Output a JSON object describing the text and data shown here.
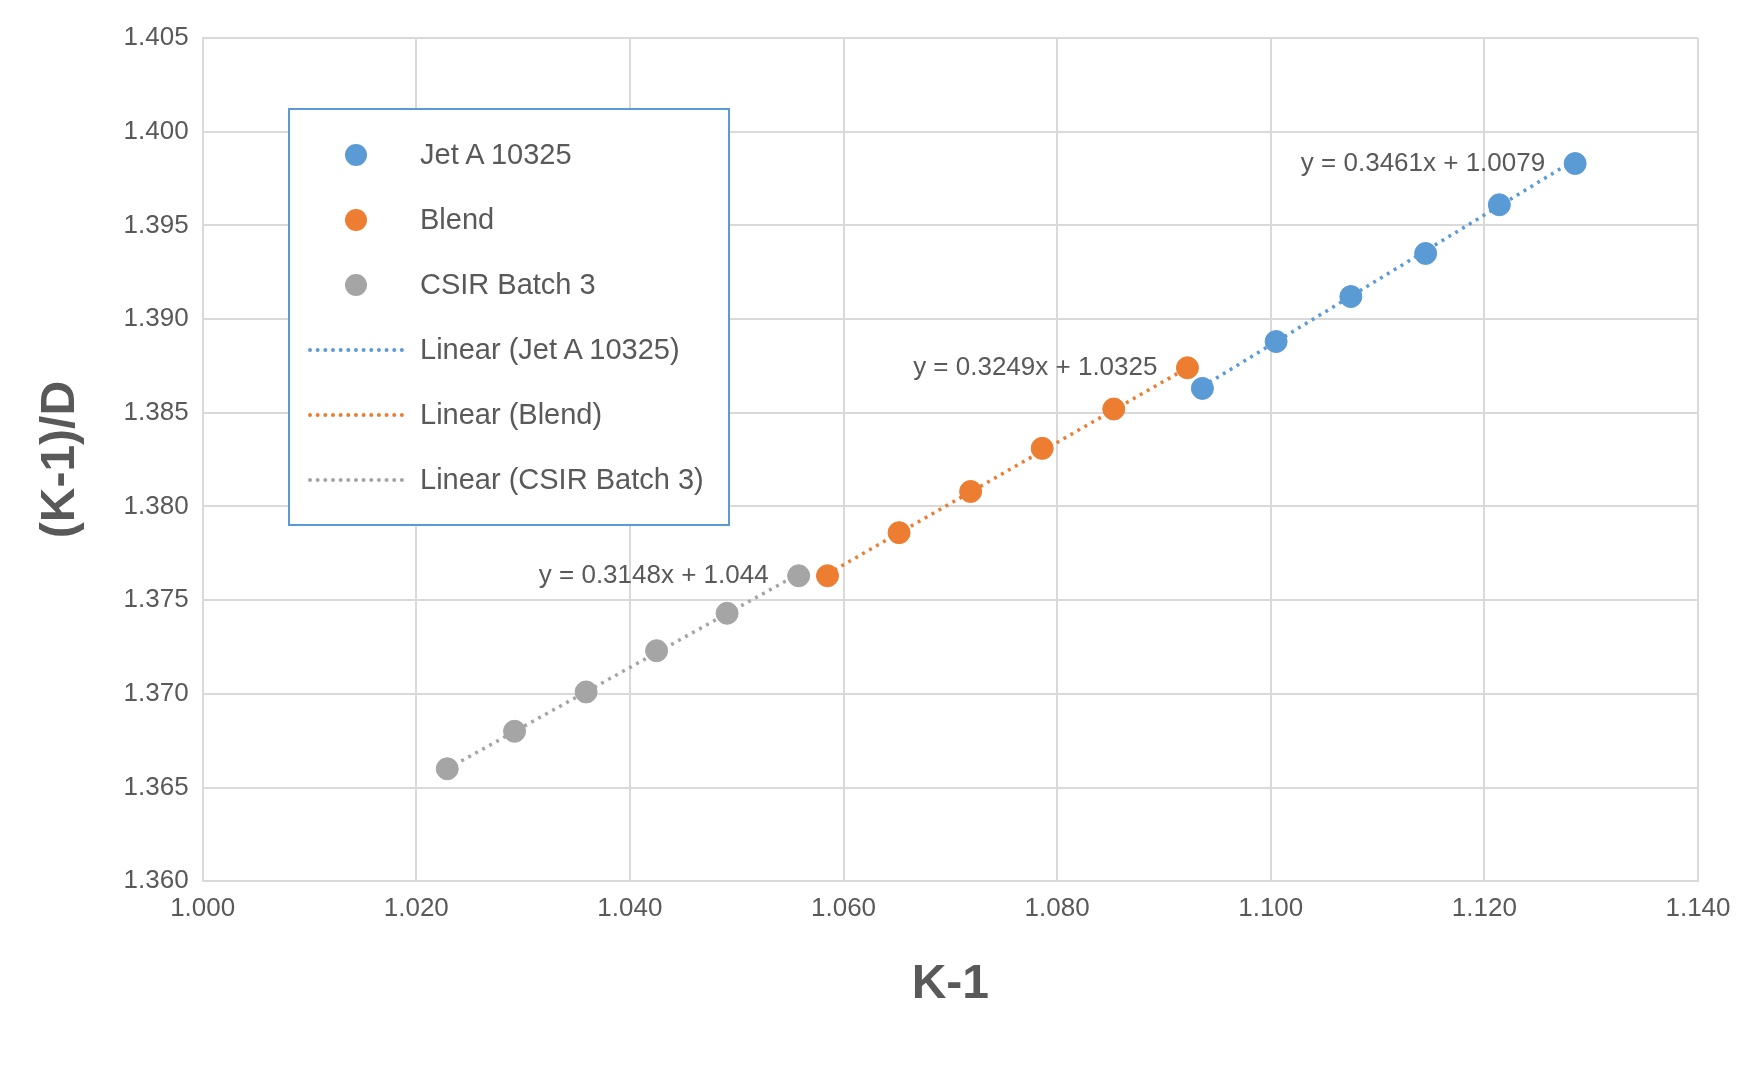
{
  "chart_data": {
    "type": "scatter",
    "xlabel": "K-1",
    "ylabel": "(K-1)/D",
    "xlim": [
      1.0,
      1.14
    ],
    "xticks": [
      {
        "value": 1.0,
        "label": "1.000"
      },
      {
        "value": 1.02,
        "label": "1.020"
      },
      {
        "value": 1.04,
        "label": "1.040"
      },
      {
        "value": 1.06,
        "label": "1.060"
      },
      {
        "value": 1.08,
        "label": "1.080"
      },
      {
        "value": 1.1,
        "label": "1.100"
      },
      {
        "value": 1.12,
        "label": "1.120"
      },
      {
        "value": 1.14,
        "label": "1.140"
      }
    ],
    "ylim": [
      1.36,
      1.405
    ],
    "yticks": [
      {
        "value": 1.36,
        "label": "1.360"
      },
      {
        "value": 1.365,
        "label": "1.365"
      },
      {
        "value": 1.37,
        "label": "1.370"
      },
      {
        "value": 1.375,
        "label": "1.375"
      },
      {
        "value": 1.38,
        "label": "1.380"
      },
      {
        "value": 1.385,
        "label": "1.385"
      },
      {
        "value": 1.39,
        "label": "1.390"
      },
      {
        "value": 1.395,
        "label": "1.395"
      },
      {
        "value": 1.4,
        "label": "1.400"
      },
      {
        "value": 1.405,
        "label": "1.405"
      }
    ],
    "grid": true,
    "legend": "top left",
    "series": [
      {
        "name": "Jet A 10325",
        "type": "scatter",
        "marker": "circle",
        "color": "#5b9bd5",
        "x": [
          1.0936,
          1.1005,
          1.1075,
          1.1145,
          1.1214,
          1.1285
        ],
        "values": [
          1.3863,
          1.3888,
          1.3912,
          1.3935,
          1.3961,
          1.3983
        ]
      },
      {
        "name": "Blend",
        "type": "scatter",
        "marker": "circle",
        "color": "#ed7d31",
        "x": [
          1.0585,
          1.0652,
          1.0719,
          1.0786,
          1.0853,
          1.0922
        ],
        "values": [
          1.3763,
          1.3786,
          1.3808,
          1.3831,
          1.3852,
          1.3874
        ]
      },
      {
        "name": "CSIR Batch 3",
        "type": "scatter",
        "marker": "circle",
        "color": "#a5a5a5",
        "x": [
          1.0229,
          1.0292,
          1.0359,
          1.0425,
          1.0491,
          1.0558
        ],
        "values": [
          1.366,
          1.368,
          1.3701,
          1.3723,
          1.3743,
          1.3763
        ]
      },
      {
        "name": "Linear (Jet A 10325)",
        "type": "line",
        "line_style": "dotted",
        "color": "#5b9bd5",
        "x": [
          1.0936,
          1.1285
        ],
        "values": [
          1.3864,
          1.3985
        ]
      },
      {
        "name": "Linear (Blend)",
        "type": "line",
        "line_style": "dotted",
        "color": "#ed7d31",
        "x": [
          1.0585,
          1.0922
        ],
        "values": [
          1.3764,
          1.3874
        ]
      },
      {
        "name": "Linear (CSIR Batch 3)",
        "type": "line",
        "line_style": "dotted",
        "color": "#a5a5a5",
        "x": [
          1.0229,
          1.0558
        ],
        "values": [
          1.366,
          1.3764
        ]
      }
    ],
    "annotations": [
      {
        "text": "y = 0.3461x + 1.0079",
        "x": 1.1285,
        "y": 1.3983
      },
      {
        "text": "y = 0.3249x + 1.0325",
        "x": 1.0922,
        "y": 1.3874
      },
      {
        "text": "y = 0.3148x + 1.044",
        "x": 1.0558,
        "y": 1.3763
      }
    ]
  }
}
